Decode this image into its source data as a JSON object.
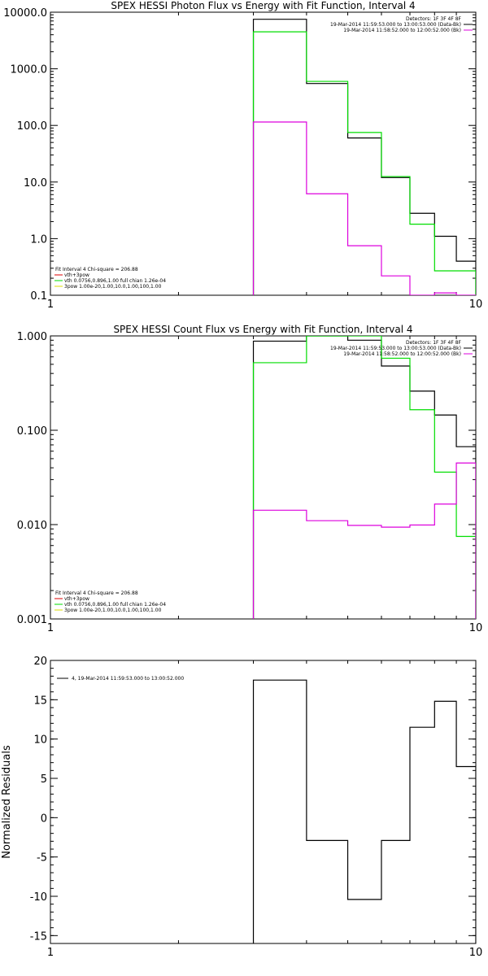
{
  "chart_data": [
    {
      "type": "line",
      "step": true,
      "title": "SPEX HESSI Photon Flux vs Energy with Fit Function, Interval 4",
      "xscale": "log",
      "yscale": "log",
      "xlim": [
        1,
        10
      ],
      "ylim": [
        0.1,
        10000
      ],
      "xticks": [
        1,
        10
      ],
      "xtick_labels": [
        "1",
        "10"
      ],
      "yticks": [
        0.1,
        1,
        10,
        100,
        1000,
        10000
      ],
      "ytick_labels": [
        "0.1",
        "1.0",
        "10.0",
        "100.0",
        "1000.0",
        "10000.0"
      ],
      "edges": [
        3,
        4,
        5,
        6,
        7,
        8,
        9,
        10
      ],
      "series": [
        {
          "color": "#000000",
          "values": [
            7500,
            550,
            60,
            12,
            2.8,
            1.1,
            0.4
          ]
        },
        {
          "color": "#00dd00",
          "values": [
            4500,
            600,
            75,
            12.5,
            1.8,
            0.27,
            0.27
          ]
        },
        {
          "color": "#dd00dd",
          "values": [
            115,
            6.2,
            0.75,
            0.22,
            0.095,
            0.11,
            0.09
          ]
        }
      ],
      "legend_tr": [
        "Detectors: 1F 3F 4F 8F",
        "19-Mar-2014 11:59:53.000 to 13:00:53.000 (Data-Bk)",
        "19-Mar-2014 11:58:52.000 to 12:00:52.000 (Bk)"
      ],
      "legend_bl": [
        "Fit Interval 4   Chi-square = 206.88",
        "vth+3pow",
        "vth 0.0756,0.896,1.00  full chian 1.26e-04",
        "3pow 1.00e-20,1.00,10.0,1.00,100,1.00"
      ]
    },
    {
      "type": "line",
      "step": true,
      "title": "SPEX HESSI Count Flux vs Energy with Fit Function, Interval 4",
      "xscale": "log",
      "yscale": "log",
      "xlim": [
        1,
        10
      ],
      "ylim": [
        0.001,
        1
      ],
      "xticks": [
        1,
        10
      ],
      "xtick_labels": [
        "1",
        "10"
      ],
      "yticks": [
        0.001,
        0.01,
        0.1,
        1
      ],
      "ytick_labels": [
        "0.001",
        "0.010",
        "0.100",
        "1.000"
      ],
      "edges": [
        3,
        4,
        5,
        6,
        7,
        8,
        9,
        10
      ],
      "series": [
        {
          "color": "#000000",
          "values": [
            0.88,
            1.05,
            0.9,
            0.48,
            0.26,
            0.145,
            0.067
          ]
        },
        {
          "color": "#00dd00",
          "values": [
            0.52,
            1.1,
            1.05,
            0.58,
            0.165,
            0.036,
            0.0075
          ]
        },
        {
          "color": "#dd00dd",
          "values": [
            0.0142,
            0.011,
            0.0098,
            0.0094,
            0.0099,
            0.0165,
            0.045
          ]
        }
      ],
      "legend_tr": [
        "Detectors: 1F 3F 4F 8F",
        "19-Mar-2014 11:59:53.000 to 13:00:53.000 (Data-Bk)",
        "19-Mar-2014 11:58:52.000 to 12:00:52.000 (Bk)"
      ],
      "legend_bl": [
        "Fit Interval 4   Chi-square = 206.88",
        "vth+3pow",
        "vth 0.0756,0.896,1.00  full chian 1.26e-04",
        "3pow 1.00e-20,1.00,10.0,1.00,100,1.00"
      ]
    },
    {
      "type": "line",
      "step": true,
      "title": "",
      "ylabel": "Normalized Residuals",
      "xscale": "log",
      "yscale": "linear",
      "xlim": [
        1,
        10
      ],
      "ylim": [
        -16,
        20
      ],
      "xticks": [
        1,
        10
      ],
      "xtick_labels": [
        "1",
        "10"
      ],
      "yticks": [
        -15,
        -10,
        -5,
        0,
        5,
        10,
        15,
        20
      ],
      "ytick_labels": [
        "-15",
        "-10",
        "-5",
        "0",
        "5",
        "10",
        "15",
        "20"
      ],
      "edges": [
        3,
        4,
        5,
        6,
        7,
        8,
        9,
        10
      ],
      "series": [
        {
          "color": "#000000",
          "values": [
            17.5,
            -2.9,
            -10.4,
            -2.9,
            11.5,
            14.8,
            6.5
          ]
        }
      ],
      "legend_tl": [
        "4, 19-Mar-2014 11:59:53.000 to 13:00:52.000"
      ]
    }
  ]
}
